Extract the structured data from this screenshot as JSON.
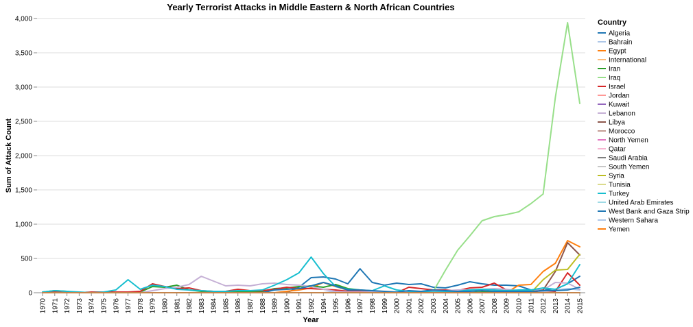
{
  "chart_data": {
    "type": "line",
    "title": "Yearly Terrorist Attacks in Middle Eastern & North African Countries",
    "xlabel": "Year",
    "ylabel": "Sum of Attack Count",
    "ylim": [
      0,
      4000
    ],
    "yticks": [
      "0",
      "500",
      "1,000",
      "1,500",
      "2,000",
      "2,500",
      "3,000",
      "3,500",
      "4,000"
    ],
    "grid": true,
    "legend_title": "Country",
    "legend_position": "right",
    "x": [
      "1970",
      "1971",
      "1972",
      "1973",
      "1974",
      "1975",
      "1976",
      "1977",
      "1978",
      "1979",
      "1980",
      "1981",
      "1982",
      "1983",
      "1984",
      "1985",
      "1986",
      "1987",
      "1988",
      "1989",
      "1990",
      "1991",
      "1992",
      "1994",
      "1995",
      "1996",
      "1997",
      "1998",
      "1999",
      "2000",
      "2001",
      "2002",
      "2003",
      "2004",
      "2005",
      "2006",
      "2007",
      "2008",
      "2009",
      "2010",
      "2011",
      "2012",
      "2013",
      "2014",
      "2015"
    ],
    "series": [
      {
        "name": "Algeria",
        "color": "#1f77b4",
        "values": [
          0,
          0,
          0,
          0,
          0,
          0,
          0,
          0,
          0,
          0,
          0,
          0,
          0,
          0,
          0,
          0,
          0,
          0,
          0,
          0,
          0,
          80,
          220,
          230,
          200,
          130,
          350,
          150,
          110,
          140,
          120,
          130,
          80,
          70,
          110,
          160,
          130,
          110,
          110,
          100,
          40,
          40,
          50,
          130,
          240
        ]
      },
      {
        "name": "Bahrain",
        "color": "#aec7e8",
        "values": [
          0,
          0,
          0,
          0,
          0,
          0,
          0,
          0,
          0,
          0,
          0,
          0,
          0,
          0,
          0,
          0,
          0,
          0,
          0,
          0,
          0,
          0,
          0,
          0,
          20,
          40,
          10,
          0,
          0,
          0,
          0,
          0,
          0,
          0,
          0,
          0,
          0,
          0,
          0,
          0,
          10,
          20,
          40,
          60,
          40
        ]
      },
      {
        "name": "Egypt",
        "color": "#ff7f0e",
        "values": [
          0,
          0,
          0,
          0,
          0,
          0,
          0,
          0,
          0,
          0,
          0,
          0,
          0,
          0,
          0,
          0,
          0,
          0,
          0,
          0,
          20,
          40,
          70,
          150,
          90,
          40,
          30,
          10,
          0,
          0,
          0,
          0,
          0,
          0,
          0,
          0,
          0,
          0,
          0,
          110,
          120,
          310,
          430,
          760,
          670
        ]
      },
      {
        "name": "International",
        "color": "#ffbb78",
        "values": [
          0,
          0,
          0,
          0,
          0,
          0,
          0,
          0,
          0,
          0,
          0,
          0,
          0,
          0,
          0,
          0,
          0,
          0,
          0,
          0,
          0,
          0,
          0,
          0,
          0,
          0,
          0,
          0,
          0,
          0,
          0,
          0,
          0,
          0,
          0,
          0,
          0,
          0,
          0,
          0,
          0,
          0,
          0,
          0,
          0
        ]
      },
      {
        "name": "Iran",
        "color": "#2ca02c",
        "values": [
          10,
          30,
          20,
          0,
          0,
          0,
          0,
          0,
          10,
          90,
          80,
          110,
          40,
          20,
          20,
          20,
          10,
          10,
          20,
          60,
          70,
          90,
          100,
          80,
          120,
          60,
          40,
          20,
          10,
          0,
          10,
          10,
          0,
          0,
          0,
          0,
          10,
          20,
          10,
          10,
          0,
          0,
          0,
          0,
          0
        ]
      },
      {
        "name": "Iraq",
        "color": "#98df8a",
        "values": [
          0,
          0,
          0,
          0,
          0,
          0,
          0,
          0,
          0,
          0,
          0,
          0,
          0,
          0,
          0,
          0,
          0,
          0,
          0,
          0,
          0,
          0,
          0,
          0,
          0,
          0,
          0,
          0,
          0,
          0,
          0,
          0,
          20,
          330,
          620,
          830,
          1050,
          1110,
          1140,
          1180,
          1300,
          1440,
          2850,
          3940,
          2760
        ]
      },
      {
        "name": "Israel",
        "color": "#d62728",
        "values": [
          0,
          10,
          0,
          0,
          10,
          10,
          10,
          10,
          20,
          130,
          90,
          60,
          70,
          30,
          20,
          20,
          50,
          30,
          30,
          50,
          80,
          60,
          60,
          50,
          40,
          20,
          30,
          20,
          10,
          0,
          80,
          60,
          40,
          40,
          30,
          70,
          80,
          140,
          40,
          20,
          20,
          30,
          20,
          290,
          110
        ]
      },
      {
        "name": "Jordan",
        "color": "#ff9896",
        "values": [
          0,
          0,
          0,
          0,
          0,
          0,
          0,
          0,
          0,
          0,
          0,
          0,
          0,
          0,
          0,
          0,
          0,
          0,
          0,
          0,
          0,
          0,
          0,
          0,
          0,
          0,
          0,
          0,
          0,
          0,
          0,
          0,
          0,
          0,
          0,
          0,
          0,
          0,
          0,
          0,
          0,
          0,
          0,
          0,
          0
        ]
      },
      {
        "name": "Kuwait",
        "color": "#9467bd",
        "values": [
          0,
          0,
          0,
          0,
          0,
          0,
          0,
          0,
          0,
          0,
          0,
          0,
          0,
          0,
          0,
          0,
          0,
          0,
          0,
          0,
          0,
          0,
          0,
          0,
          0,
          0,
          0,
          0,
          0,
          0,
          0,
          0,
          0,
          0,
          0,
          0,
          0,
          0,
          0,
          0,
          0,
          0,
          0,
          0,
          0
        ]
      },
      {
        "name": "Lebanon",
        "color": "#c5b0d5",
        "values": [
          0,
          0,
          0,
          0,
          0,
          0,
          0,
          0,
          0,
          30,
          60,
          80,
          120,
          240,
          170,
          100,
          110,
          100,
          130,
          140,
          120,
          110,
          90,
          50,
          20,
          10,
          10,
          10,
          10,
          10,
          10,
          10,
          20,
          30,
          40,
          40,
          50,
          60,
          50,
          30,
          30,
          40,
          150,
          140,
          50
        ]
      },
      {
        "name": "Libya",
        "color": "#8c564b",
        "values": [
          0,
          0,
          0,
          0,
          0,
          0,
          0,
          0,
          0,
          0,
          0,
          0,
          0,
          0,
          0,
          0,
          0,
          0,
          0,
          0,
          0,
          0,
          0,
          0,
          0,
          0,
          0,
          0,
          0,
          0,
          0,
          0,
          0,
          0,
          0,
          0,
          0,
          0,
          0,
          0,
          0,
          40,
          310,
          730,
          550
        ]
      },
      {
        "name": "Morocco",
        "color": "#c49c94",
        "values": [
          0,
          0,
          0,
          0,
          0,
          0,
          0,
          0,
          0,
          0,
          0,
          0,
          0,
          0,
          0,
          0,
          0,
          0,
          0,
          0,
          0,
          0,
          0,
          0,
          0,
          0,
          0,
          0,
          0,
          0,
          0,
          0,
          0,
          0,
          0,
          0,
          0,
          0,
          0,
          0,
          0,
          0,
          0,
          0,
          0
        ]
      },
      {
        "name": "North Yemen",
        "color": "#e377c2",
        "values": [
          0,
          0,
          0,
          0,
          0,
          0,
          0,
          0,
          0,
          0,
          0,
          0,
          0,
          0,
          0,
          0,
          0,
          0,
          0,
          0,
          0,
          0,
          0,
          0,
          0,
          0,
          0,
          0,
          0,
          0,
          0,
          0,
          0,
          0,
          0,
          0,
          0,
          0,
          0,
          0,
          0,
          0,
          0,
          0,
          0
        ]
      },
      {
        "name": "Qatar",
        "color": "#f7b6d2",
        "values": [
          0,
          0,
          0,
          0,
          0,
          0,
          0,
          0,
          0,
          0,
          0,
          0,
          0,
          0,
          0,
          0,
          0,
          0,
          0,
          0,
          0,
          0,
          0,
          0,
          0,
          0,
          0,
          0,
          0,
          0,
          0,
          0,
          0,
          0,
          0,
          0,
          0,
          0,
          0,
          0,
          0,
          0,
          0,
          0,
          0
        ]
      },
      {
        "name": "Saudi Arabia",
        "color": "#7f7f7f",
        "values": [
          0,
          0,
          0,
          0,
          0,
          0,
          0,
          0,
          0,
          0,
          0,
          0,
          0,
          0,
          0,
          0,
          0,
          0,
          0,
          0,
          0,
          0,
          0,
          0,
          0,
          0,
          0,
          0,
          0,
          0,
          0,
          0,
          0,
          0,
          0,
          0,
          0,
          0,
          0,
          0,
          0,
          0,
          0,
          0,
          0
        ]
      },
      {
        "name": "South Yemen",
        "color": "#c7c7c7",
        "values": [
          0,
          0,
          0,
          0,
          0,
          0,
          0,
          0,
          0,
          0,
          0,
          0,
          0,
          0,
          0,
          0,
          0,
          0,
          0,
          0,
          0,
          0,
          0,
          0,
          0,
          0,
          0,
          0,
          0,
          0,
          0,
          0,
          0,
          0,
          0,
          0,
          0,
          0,
          0,
          0,
          0,
          0,
          0,
          0,
          0
        ]
      },
      {
        "name": "Syria",
        "color": "#bcbd22",
        "values": [
          0,
          0,
          0,
          0,
          0,
          0,
          0,
          0,
          0,
          0,
          0,
          0,
          0,
          0,
          0,
          0,
          0,
          0,
          0,
          0,
          0,
          0,
          0,
          0,
          0,
          0,
          0,
          0,
          0,
          0,
          0,
          0,
          0,
          0,
          0,
          0,
          0,
          0,
          0,
          0,
          0,
          190,
          330,
          340,
          560
        ]
      },
      {
        "name": "Tunisia",
        "color": "#dbdb8d",
        "values": [
          0,
          0,
          0,
          0,
          0,
          0,
          0,
          0,
          0,
          0,
          0,
          0,
          0,
          0,
          0,
          0,
          0,
          0,
          0,
          0,
          0,
          0,
          0,
          0,
          0,
          0,
          0,
          0,
          0,
          0,
          0,
          0,
          0,
          0,
          0,
          0,
          0,
          0,
          0,
          0,
          0,
          0,
          0,
          0,
          0
        ]
      },
      {
        "name": "Turkey",
        "color": "#17becf",
        "values": [
          10,
          30,
          20,
          10,
          0,
          10,
          40,
          190,
          50,
          110,
          90,
          50,
          40,
          30,
          20,
          20,
          30,
          30,
          40,
          110,
          190,
          290,
          520,
          280,
          90,
          50,
          40,
          30,
          100,
          40,
          20,
          10,
          10,
          10,
          20,
          40,
          50,
          40,
          30,
          40,
          40,
          70,
          50,
          130,
          410
        ]
      },
      {
        "name": "United Arab Emirates",
        "color": "#9edae5",
        "values": [
          0,
          0,
          0,
          0,
          0,
          0,
          0,
          0,
          0,
          0,
          0,
          0,
          0,
          0,
          0,
          0,
          0,
          0,
          0,
          0,
          0,
          0,
          0,
          0,
          0,
          0,
          0,
          0,
          0,
          0,
          0,
          0,
          0,
          0,
          0,
          0,
          0,
          0,
          0,
          0,
          0,
          0,
          0,
          0,
          0
        ]
      },
      {
        "name": "West Bank and Gaza Strip",
        "color": "#1f77b4",
        "values": [
          0,
          0,
          0,
          0,
          0,
          0,
          0,
          0,
          0,
          0,
          0,
          0,
          0,
          0,
          0,
          0,
          0,
          0,
          0,
          40,
          50,
          60,
          100,
          150,
          100,
          40,
          40,
          30,
          20,
          10,
          30,
          20,
          40,
          30,
          20,
          20,
          30,
          20,
          20,
          20,
          20,
          30,
          30,
          40,
          80
        ]
      },
      {
        "name": "Western Sahara",
        "color": "#aec7e8",
        "values": [
          0,
          0,
          0,
          0,
          0,
          0,
          0,
          0,
          0,
          0,
          0,
          0,
          0,
          0,
          0,
          0,
          0,
          0,
          0,
          0,
          0,
          0,
          0,
          0,
          0,
          0,
          0,
          0,
          0,
          0,
          0,
          0,
          0,
          0,
          0,
          0,
          0,
          0,
          0,
          0,
          0,
          0,
          0,
          0,
          0
        ]
      },
      {
        "name": "Yemen",
        "color": "#ff7f0e",
        "values": [
          0,
          0,
          0,
          0,
          0,
          0,
          0,
          0,
          0,
          0,
          0,
          0,
          0,
          0,
          0,
          0,
          0,
          0,
          0,
          0,
          0,
          0,
          0,
          0,
          0,
          0,
          0,
          0,
          0,
          0,
          0,
          0,
          0,
          0,
          0,
          0,
          0,
          0,
          0,
          0,
          0,
          0,
          0,
          0,
          0
        ]
      }
    ]
  }
}
